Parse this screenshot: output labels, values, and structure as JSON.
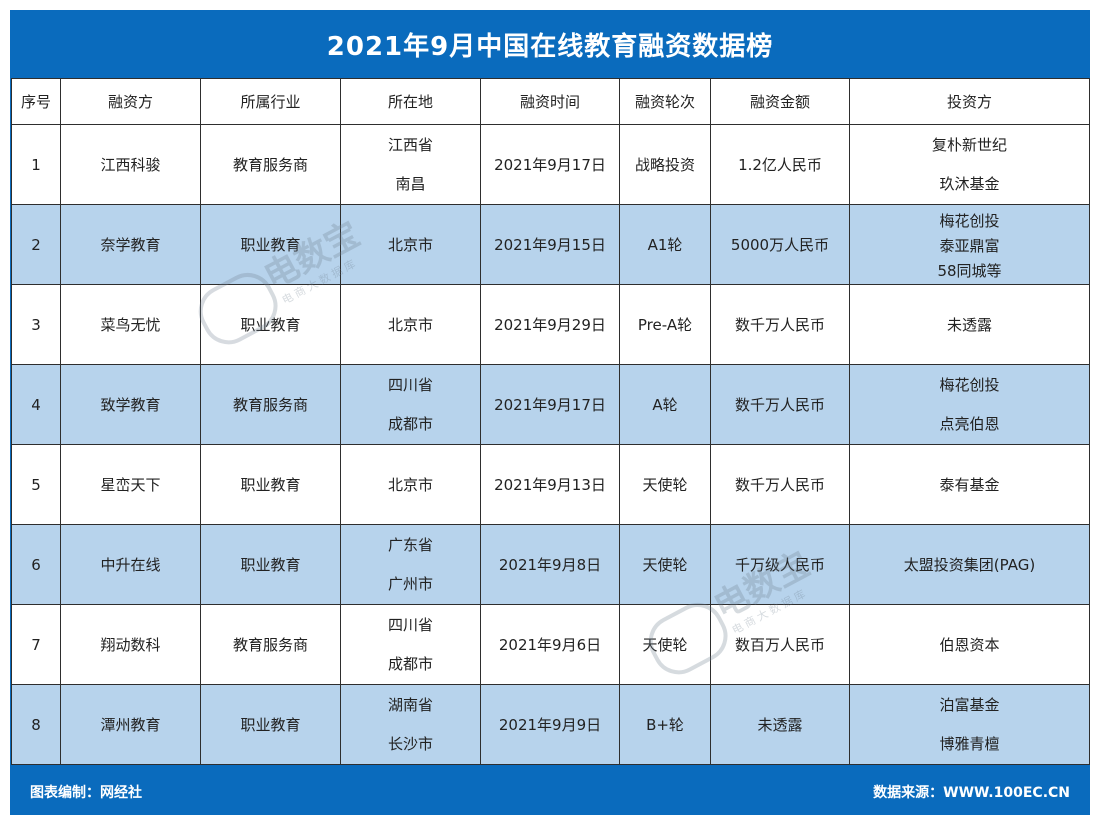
{
  "title": "2021年9月中国在线教育融资数据榜",
  "headers": [
    "序号",
    "融资方",
    "所属行业",
    "所在地",
    "融资时间",
    "融资轮次",
    "融资金额",
    "投资方"
  ],
  "rows": [
    {
      "no": "1",
      "company": "江西科骏",
      "industry": "教育服务商",
      "location": [
        "江西省",
        "南昌"
      ],
      "date": "2021年9月17日",
      "round": "战略投资",
      "amount": "1.2亿人民币",
      "investors": [
        "复朴新世纪",
        "玖沐基金"
      ]
    },
    {
      "no": "2",
      "company": "奈学教育",
      "industry": "职业教育",
      "location": [
        "北京市"
      ],
      "date": "2021年9月15日",
      "round": "A1轮",
      "amount": "5000万人民币",
      "investors": [
        "梅花创投",
        "泰亚鼎富",
        "58同城等"
      ]
    },
    {
      "no": "3",
      "company": "菜鸟无忧",
      "industry": "职业教育",
      "location": [
        "北京市"
      ],
      "date": "2021年9月29日",
      "round": "Pre-A轮",
      "amount": "数千万人民币",
      "investors": [
        "未透露"
      ]
    },
    {
      "no": "4",
      "company": "致学教育",
      "industry": "教育服务商",
      "location": [
        "四川省",
        "成都市"
      ],
      "date": "2021年9月17日",
      "round": "A轮",
      "amount": "数千万人民币",
      "investors": [
        "梅花创投",
        "点亮伯恩"
      ]
    },
    {
      "no": "5",
      "company": "星峦天下",
      "industry": "职业教育",
      "location": [
        "北京市"
      ],
      "date": "2021年9月13日",
      "round": "天使轮",
      "amount": "数千万人民币",
      "investors": [
        "泰有基金"
      ]
    },
    {
      "no": "6",
      "company": "中升在线",
      "industry": "职业教育",
      "location": [
        "广东省",
        "广州市"
      ],
      "date": "2021年9月8日",
      "round": "天使轮",
      "amount": "千万级人民币",
      "investors": [
        "太盟投资集团(PAG)"
      ]
    },
    {
      "no": "7",
      "company": "翔动数科",
      "industry": "教育服务商",
      "location": [
        "四川省",
        "成都市"
      ],
      "date": "2021年9月6日",
      "round": "天使轮",
      "amount": "数百万人民币",
      "investors": [
        "伯恩资本"
      ]
    },
    {
      "no": "8",
      "company": "潭州教育",
      "industry": "职业教育",
      "location": [
        "湖南省",
        "长沙市"
      ],
      "date": "2021年9月9日",
      "round": "B+轮",
      "amount": "未透露",
      "investors": [
        "泊富基金",
        "博雅青檀"
      ]
    }
  ],
  "footer": {
    "left": "图表编制：网经社",
    "right": "数据来源：WWW.100EC.CN"
  },
  "watermark": {
    "main": "电数宝",
    "sub": "电商大数据库"
  },
  "colors": {
    "brand": "#0a6bbd",
    "row_alt": "#b7d3ec",
    "border": "#2e2e2e"
  }
}
